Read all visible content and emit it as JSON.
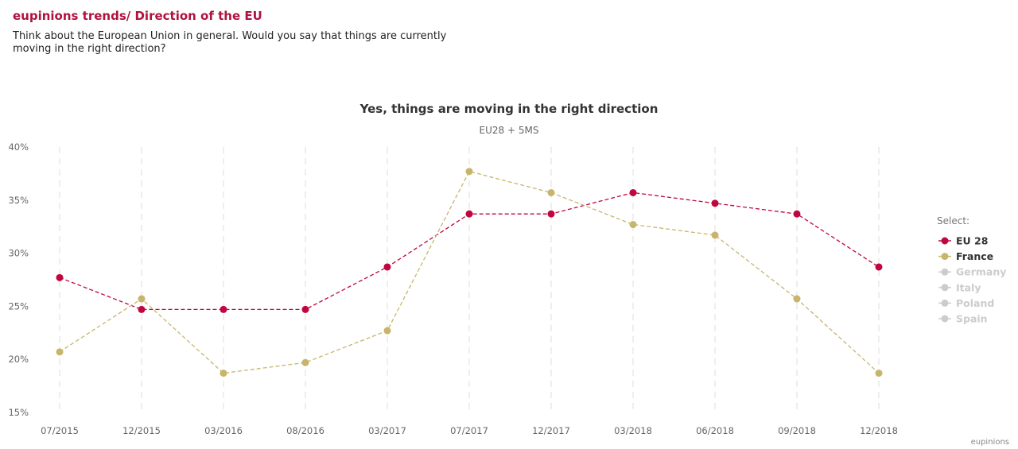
{
  "header": {
    "title": "eupinions trends/ Direction of the EU",
    "question": "Think about the European Union in general. Would you say that things are currently moving in the right direction?"
  },
  "colors": {
    "title": "#b0123f",
    "eu28": "#c0063f",
    "france": "#c8b56c",
    "inactive": "#cccccc",
    "gridline": "#e2e2e2"
  },
  "legend": {
    "title": "Select:",
    "items": [
      {
        "label": "EU 28",
        "active": true,
        "color": "#c0063f"
      },
      {
        "label": "France",
        "active": true,
        "color": "#c8b56c"
      },
      {
        "label": "Germany",
        "active": false,
        "color": "#cccccc"
      },
      {
        "label": "Italy",
        "active": false,
        "color": "#cccccc"
      },
      {
        "label": "Poland",
        "active": false,
        "color": "#cccccc"
      },
      {
        "label": "Spain",
        "active": false,
        "color": "#cccccc"
      }
    ]
  },
  "credit": "eupinions",
  "chart_data": {
    "type": "line",
    "title": "Yes, things are moving in the right direction",
    "subtitle": "EU28 + 5MS",
    "categories": [
      "07/2015",
      "12/2015",
      "03/2016",
      "08/2016",
      "03/2017",
      "07/2017",
      "12/2017",
      "03/2018",
      "06/2018",
      "09/2018",
      "12/2018"
    ],
    "y_ticks": [
      "15%",
      "20%",
      "25%",
      "30%",
      "35%",
      "40%"
    ],
    "ylim": [
      15,
      40
    ],
    "y_unit": "%",
    "grid": "vertical dashed",
    "legend_position": "right",
    "series": [
      {
        "name": "EU 28",
        "color": "#c0063f",
        "values": [
          27.7,
          24.7,
          24.7,
          24.7,
          28.7,
          33.7,
          33.7,
          35.7,
          34.7,
          33.7,
          28.7
        ]
      },
      {
        "name": "France",
        "color": "#c8b56c",
        "values": [
          20.7,
          25.7,
          18.7,
          19.7,
          22.7,
          37.7,
          35.7,
          32.7,
          31.7,
          25.7,
          18.7
        ]
      }
    ]
  }
}
